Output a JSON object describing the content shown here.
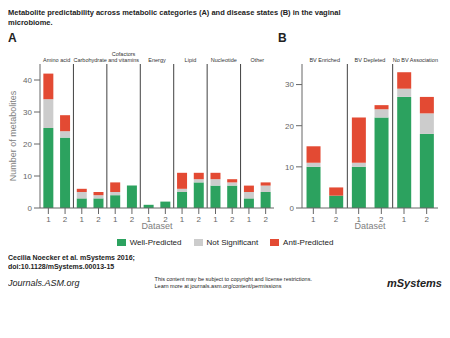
{
  "title": "Metabolite predictability across metabolic categories (A) and disease states (B) in the vaginal\nmicrobiome.",
  "annotations": [
    "Cecilia Noecker et al. mSystems 2016;\ndoi:10.1128/mSystems.00013-15",
    "Journals.ASM.org",
    "This content may be subject to copyright and license restrictions.\nLearn more at journals.asm.org/content/permissions",
    "mSystems"
  ],
  "chart_data": [
    {
      "type": "bar",
      "stacked": true,
      "grid": false,
      "title": "A",
      "xlabel": "Dataset",
      "ylabel": "Number of metabolites",
      "ylim": [
        0,
        45
      ],
      "yticks": [
        0,
        10,
        20,
        30,
        40
      ],
      "groups": [
        "Amino acid",
        "Carbohydrate",
        "Cofactors\nand vitamins",
        "Energy",
        "Lipid",
        "Nucleotide",
        "Other"
      ],
      "categories": [
        "1",
        "2",
        "1",
        "2",
        "1",
        "2",
        "1",
        "2",
        "1",
        "2",
        "1",
        "2",
        "1",
        "2"
      ],
      "series": [
        {
          "name": "Well-Predicted",
          "color": "#2ca25f",
          "values": [
            25,
            22,
            3,
            3,
            4,
            7,
            1,
            2,
            5,
            8,
            7,
            7,
            3,
            5
          ]
        },
        {
          "name": "Not Significant",
          "color": "#cccccc",
          "values": [
            9,
            2,
            2,
            1,
            1,
            0,
            0,
            0,
            1,
            1,
            2,
            1,
            2,
            2
          ]
        },
        {
          "name": "Anti-Predicted",
          "color": "#e34a33",
          "values": [
            8,
            5,
            1,
            1,
            3,
            0,
            0,
            0,
            5,
            2,
            2,
            1,
            2,
            1
          ]
        }
      ]
    },
    {
      "type": "bar",
      "stacked": true,
      "grid": false,
      "title": "B",
      "xlabel": "Dataset",
      "ylim": [
        0,
        35
      ],
      "yticks": [
        0,
        10,
        20,
        30
      ],
      "groups": [
        "BV Enriched",
        "BV Depleted",
        "No BV Association"
      ],
      "categories": [
        "1",
        "2",
        "1",
        "2",
        "1",
        "2"
      ],
      "series": [
        {
          "name": "Well-Predicted",
          "color": "#2ca25f",
          "values": [
            10,
            3,
            10,
            22,
            27,
            18
          ]
        },
        {
          "name": "Not Significant",
          "color": "#cccccc",
          "values": [
            1,
            0,
            1,
            2,
            2,
            5
          ]
        },
        {
          "name": "Anti-Predicted",
          "color": "#e34a33",
          "values": [
            4,
            2,
            11,
            1,
            4,
            4
          ]
        }
      ]
    }
  ]
}
